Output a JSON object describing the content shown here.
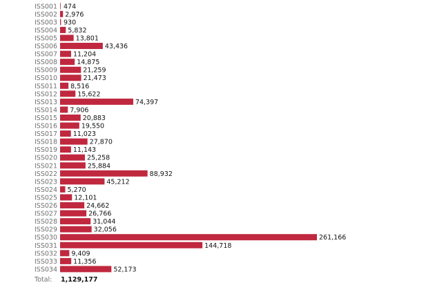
{
  "chart_data": {
    "type": "bar",
    "orientation": "horizontal",
    "categories": [
      "ISS001",
      "ISS002",
      "ISS003",
      "ISS004",
      "ISS005",
      "ISS006",
      "ISS007",
      "ISS008",
      "ISS009",
      "ISS010",
      "ISS011",
      "ISS012",
      "ISS013",
      "ISS014",
      "ISS015",
      "ISS016",
      "ISS017",
      "ISS018",
      "ISS019",
      "ISS020",
      "ISS021",
      "ISS022",
      "ISS023",
      "ISS024",
      "ISS025",
      "ISS026",
      "ISS027",
      "ISS028",
      "ISS029",
      "ISS030",
      "ISS031",
      "ISS032",
      "ISS033",
      "ISS034"
    ],
    "values": [
      474,
      2976,
      930,
      5832,
      13801,
      43436,
      11204,
      14875,
      21259,
      21473,
      8516,
      15622,
      74397,
      7906,
      20883,
      19550,
      11023,
      27870,
      11143,
      25258,
      25884,
      88932,
      45212,
      5270,
      12101,
      24662,
      26766,
      31044,
      32056,
      261166,
      144718,
      9409,
      11356,
      52173
    ],
    "value_labels": [
      "474",
      "2,976",
      "930",
      "5,832",
      "13,801",
      "43,436",
      "11,204",
      "14,875",
      "21,259",
      "21,473",
      "8,516",
      "15,622",
      "74,397",
      "7,906",
      "20,883",
      "19,550",
      "11,023",
      "27,870",
      "11,143",
      "25,258",
      "25,884",
      "88,932",
      "45,212",
      "5,270",
      "12,101",
      "24,662",
      "26,766",
      "31,044",
      "32,056",
      "261,166",
      "144,718",
      "9,409",
      "11,356",
      "52,173"
    ],
    "bar_color": "#c0283f",
    "title": "",
    "xlabel": "",
    "ylabel": "",
    "grid": false,
    "total_label": "Total:",
    "total_value": "1,129,177"
  }
}
